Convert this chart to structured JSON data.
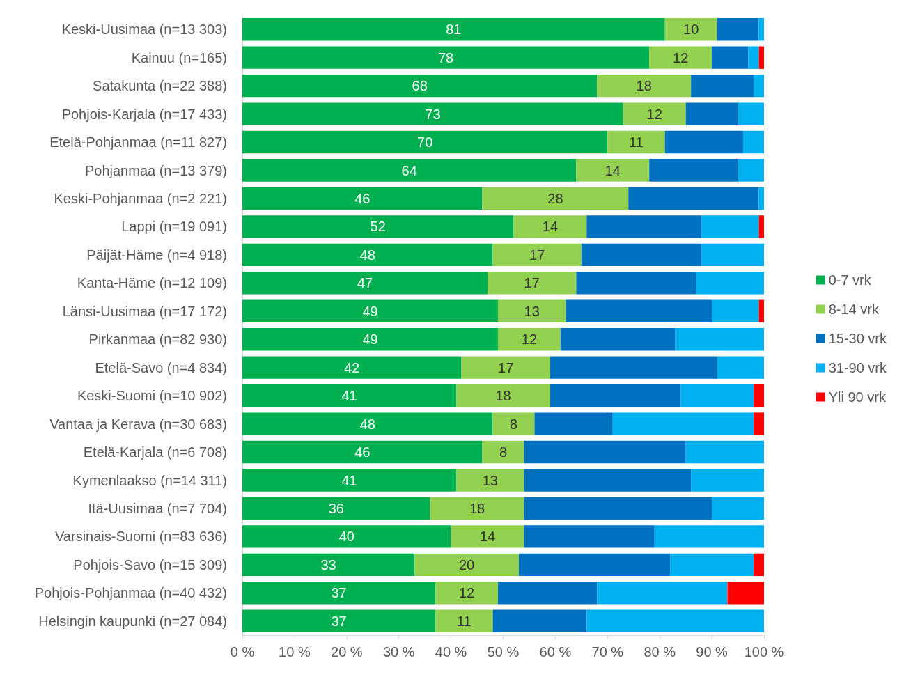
{
  "chart_data": {
    "type": "bar",
    "orientation": "horizontal",
    "stacked": true,
    "categories": [
      "Keski-Uusimaa (n=13 303)",
      "Kainuu (n=165)",
      "Satakunta (n=22 388)",
      "Pohjois-Karjala (n=17 433)",
      "Etelä-Pohjanmaa (n=11 827)",
      "Pohjanmaa (n=13 379)",
      "Keski-Pohjanmaa (n=2 221)",
      "Lappi (n=19 091)",
      "Päijät-Häme (n=4 918)",
      "Kanta-Häme (n=12 109)",
      "Länsi-Uusimaa (n=17 172)",
      "Pirkanmaa (n=82 930)",
      "Etelä-Savo (n=4 834)",
      "Keski-Suomi (n=10 902)",
      "Vantaa ja Kerava (n=30 683)",
      "Etelä-Karjala (n=6 708)",
      "Kymenlaakso (n=14 311)",
      "Itä-Uusimaa (n=7 704)",
      "Varsinais-Suomi (n=83 636)",
      "Pohjois-Savo (n=15 309)",
      "Pohjois-Pohjanmaa (n=40 432)",
      "Helsingin kaupunki (n=27 084)"
    ],
    "series": [
      {
        "name": "0-7 vrk",
        "color": "#00b050",
        "values": [
          81,
          78,
          68,
          73,
          70,
          64,
          46,
          52,
          48,
          47,
          49,
          49,
          42,
          41,
          48,
          46,
          41,
          36,
          40,
          33,
          37,
          37
        ],
        "value_labels": [
          "81",
          "78",
          "68",
          "73",
          "70",
          "64",
          "46",
          "52",
          "48",
          "47",
          "49",
          "49",
          "42",
          "41",
          "48",
          "46",
          "41",
          "36",
          "40",
          "33",
          "37",
          "37"
        ]
      },
      {
        "name": "8-14 vrk",
        "color": "#92d050",
        "values": [
          10,
          12,
          18,
          12,
          11,
          14,
          28,
          14,
          17,
          17,
          13,
          12,
          17,
          18,
          8,
          8,
          13,
          18,
          14,
          20,
          12,
          11
        ],
        "value_labels": [
          "10",
          "12",
          "18",
          "12",
          "11",
          "14",
          "28",
          "14",
          "17",
          "17",
          "13",
          "12",
          "17",
          "18",
          "8",
          "8",
          "13",
          "18",
          "14",
          "20",
          "12",
          "11"
        ]
      },
      {
        "name": "15-30 vrk",
        "color": "#0070c0",
        "values": [
          8,
          7,
          12,
          10,
          15,
          17,
          25,
          22,
          23,
          23,
          28,
          22,
          32,
          25,
          15,
          31,
          32,
          36,
          25,
          29,
          19,
          18
        ]
      },
      {
        "name": "31-90 vrk",
        "color": "#00b0f0",
        "values": [
          1,
          2,
          2,
          5,
          4,
          5,
          1,
          11,
          12,
          13,
          9,
          17,
          9,
          14,
          27,
          15,
          14,
          10,
          21,
          16,
          25,
          34
        ]
      },
      {
        "name": "Yli 90 vrk",
        "color": "#ff0000",
        "values": [
          0,
          1,
          0,
          0,
          0,
          0,
          0,
          1,
          0,
          0,
          1,
          0,
          0,
          2,
          2,
          0,
          0,
          0,
          0,
          2,
          7,
          0
        ]
      }
    ],
    "xlim": [
      0,
      100
    ],
    "xticks": [
      {
        "value": 0,
        "label": "0 %"
      },
      {
        "value": 10,
        "label": "10 %"
      },
      {
        "value": 20,
        "label": "20 %"
      },
      {
        "value": 30,
        "label": "30 %"
      },
      {
        "value": 40,
        "label": "40 %"
      },
      {
        "value": 50,
        "label": "50 %"
      },
      {
        "value": 60,
        "label": "60 %"
      },
      {
        "value": 70,
        "label": "70 %"
      },
      {
        "value": 80,
        "label": "80 %"
      },
      {
        "value": 90,
        "label": "90 %"
      },
      {
        "value": 100,
        "label": "100 %"
      }
    ],
    "grid": false,
    "legend": "right"
  }
}
